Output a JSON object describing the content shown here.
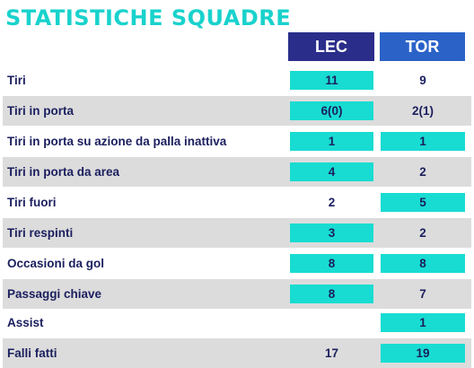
{
  "title": "STATISTICHE SQUADRE",
  "teams": {
    "home": "LEC",
    "away": "TOR"
  },
  "colors": {
    "title": "#19d2cc",
    "home_header": "#2a2d8a",
    "away_header": "#2a62c8",
    "highlight": "#18dcd2",
    "row_shade": "#dcdcdc",
    "text": "#1b1f5e"
  },
  "stats": [
    {
      "label": "Tiri",
      "home": "11",
      "away": "9",
      "highlight": "home"
    },
    {
      "label": "Tiri in porta",
      "home": "6(0)",
      "away": "2(1)",
      "highlight": "home"
    },
    {
      "label": "Tiri in porta su azione da palla inattiva",
      "home": "1",
      "away": "1",
      "highlight": "both"
    },
    {
      "label": "Tiri in porta da area",
      "home": "4",
      "away": "2",
      "highlight": "home"
    },
    {
      "label": "Tiri fuori",
      "home": "2",
      "away": "5",
      "highlight": "away"
    },
    {
      "label": "Tiri respinti",
      "home": "3",
      "away": "2",
      "highlight": "home"
    },
    {
      "label": "Occasioni da gol",
      "home": "8",
      "away": "8",
      "highlight": "both"
    },
    {
      "label": "Passaggi chiave",
      "home": "8",
      "away": "7",
      "highlight": "home"
    },
    {
      "label": "Assist",
      "home": "",
      "away": "1",
      "highlight": "away"
    },
    {
      "label": "Falli fatti",
      "home": "17",
      "away": "19",
      "highlight": "away"
    }
  ]
}
